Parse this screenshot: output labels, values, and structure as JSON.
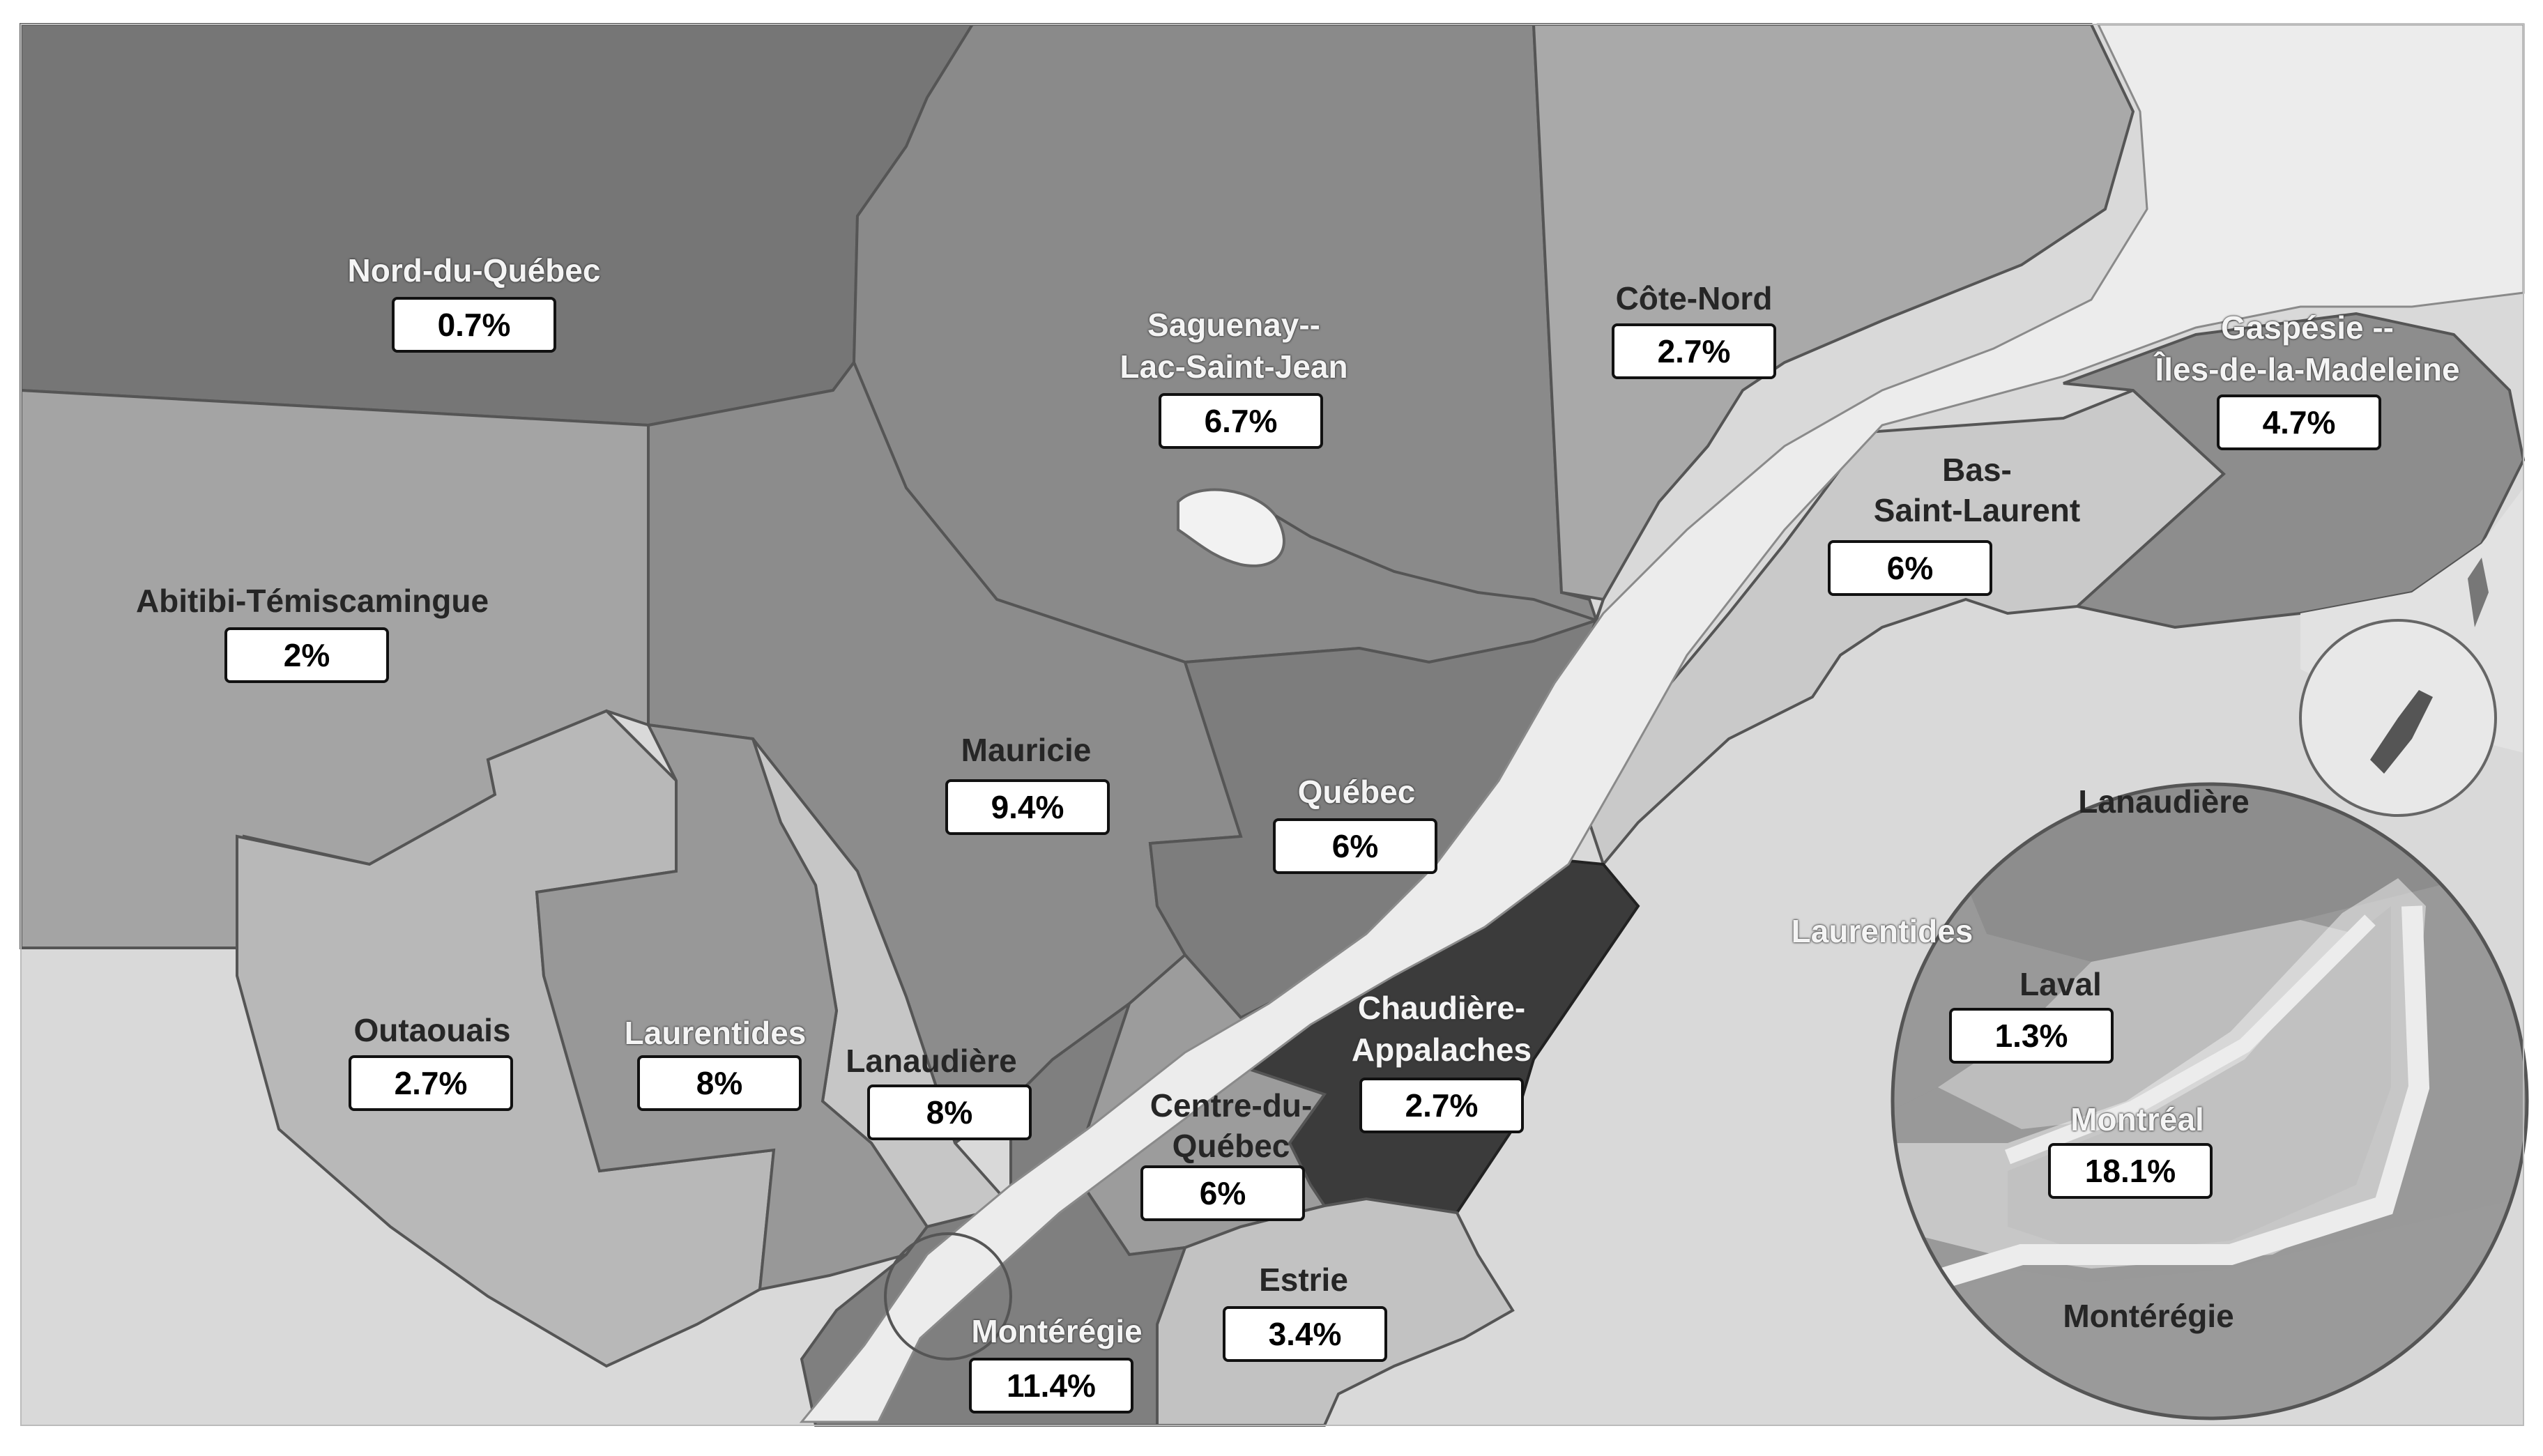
{
  "regions": [
    {
      "id": "nord-du-quebec",
      "name": "Nord-du-Québec",
      "value": "0.7%"
    },
    {
      "id": "saguenay",
      "name_line1": "Saguenay--",
      "name_line2": "Lac-Saint-Jean",
      "value": "6.7%"
    },
    {
      "id": "cote-nord",
      "name": "Côte-Nord",
      "value": "2.7%"
    },
    {
      "id": "gaspesie",
      "name_line1": "Gaspésie --",
      "name_line2": "Îles-de-la-Madeleine",
      "value": "4.7%"
    },
    {
      "id": "bas-saint-laurent",
      "name_line1": "Bas-",
      "name_line2": "Saint-Laurent",
      "value": "6%"
    },
    {
      "id": "abitibi",
      "name": "Abitibi-Témiscamingue",
      "value": "2%"
    },
    {
      "id": "mauricie",
      "name": "Mauricie",
      "value": "9.4%"
    },
    {
      "id": "quebec",
      "name": "Québec",
      "value": "6%"
    },
    {
      "id": "outaouais",
      "name": "Outaouais",
      "value": "2.7%"
    },
    {
      "id": "laurentides",
      "name": "Laurentides",
      "value": "8%"
    },
    {
      "id": "lanaudiere",
      "name": "Lanaudière",
      "value": "8%"
    },
    {
      "id": "chaudiere",
      "name_line1": "Chaudière-",
      "name_line2": "Appalaches",
      "value": "2.7%"
    },
    {
      "id": "centre-du-quebec",
      "name_line1": "Centre-du-",
      "name_line2": "Québec",
      "value": "6%"
    },
    {
      "id": "estrie",
      "name": "Estrie",
      "value": "3.4%"
    },
    {
      "id": "monteregie",
      "name": "Montérégie",
      "value": "11.4%"
    }
  ],
  "inset": {
    "lanaudiere": "Lanaudière",
    "laurentides": "Laurentides",
    "laval": {
      "name": "Laval",
      "value": "1.3%"
    },
    "montreal": {
      "name": "Montréal",
      "value": "18.1%"
    },
    "monteregie": "Montérégie"
  },
  "colors": {
    "background": "#ffffff",
    "water": "#ececec",
    "dark_region": "#3b3b3b",
    "mid_region": "#8a8a8a",
    "light_region": "#c4c4c4",
    "border": "#5e5e5e"
  }
}
